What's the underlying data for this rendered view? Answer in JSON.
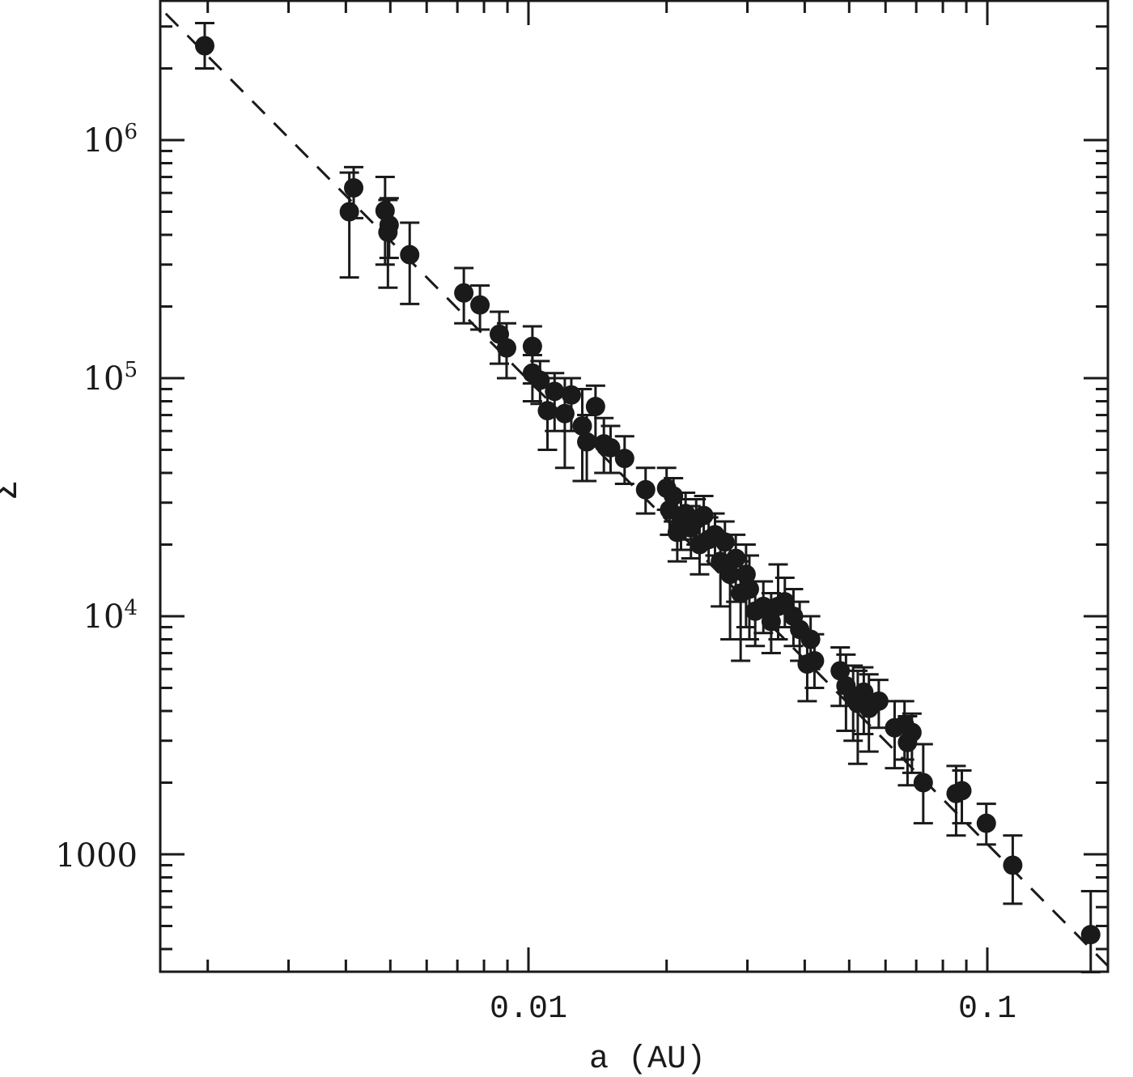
{
  "chart_data": {
    "type": "scatter",
    "title": "",
    "xlabel": "a (AU)",
    "ylabel": "Σ",
    "xscale": "log",
    "yscale": "log",
    "xlim": [
      0.00155,
      0.19
    ],
    "ylim": [
      320,
      3500000
    ],
    "grid": false,
    "legend": null,
    "x_ticks": [
      {
        "value": 0.01,
        "label": "0.01"
      },
      {
        "value": 0.1,
        "label": "0.1"
      }
    ],
    "y_ticks": [
      {
        "value": 1000,
        "label": "1000",
        "base": "1000",
        "exp": ""
      },
      {
        "value": 10000,
        "label": "10^4",
        "base": "10",
        "exp": "4"
      },
      {
        "value": 100000,
        "label": "10^5",
        "base": "10",
        "exp": "5"
      },
      {
        "value": 1000000,
        "label": "10^6",
        "base": "10",
        "exp": "6"
      }
    ],
    "marker": {
      "shape": "filled-circle",
      "color": "#1a1a1a",
      "radius_px": 12
    },
    "fit_line": {
      "style": "dashed",
      "color": "#1a1a1a",
      "from": {
        "a": 0.00162,
        "sigma": 3400000
      },
      "to": {
        "a": 0.183,
        "sigma": 340
      }
    },
    "series": [
      {
        "name": "data",
        "points": [
          {
            "a": 0.00197,
            "sigma": 2490000,
            "err_lo": 2000000,
            "err_hi": 3100000
          },
          {
            "a": 0.00407,
            "sigma": 500000,
            "err_lo": 265000,
            "err_hi": 730000
          },
          {
            "a": 0.00416,
            "sigma": 630000,
            "err_lo": 470000,
            "err_hi": 770000
          },
          {
            "a": 0.00487,
            "sigma": 505000,
            "err_lo": 300000,
            "err_hi": 700000
          },
          {
            "a": 0.00494,
            "sigma": 410000,
            "err_lo": 240000,
            "err_hi": 560000
          },
          {
            "a": 0.00497,
            "sigma": 440000,
            "err_lo": 320000,
            "err_hi": 570000
          },
          {
            "a": 0.00551,
            "sigma": 330000,
            "err_lo": 205000,
            "err_hi": 450000
          },
          {
            "a": 0.00723,
            "sigma": 228000,
            "err_lo": 170000,
            "err_hi": 290000
          },
          {
            "a": 0.00784,
            "sigma": 203000,
            "err_lo": 160000,
            "err_hi": 245000
          },
          {
            "a": 0.00864,
            "sigma": 153000,
            "err_lo": 115000,
            "err_hi": 190000
          },
          {
            "a": 0.00896,
            "sigma": 134000,
            "err_lo": 100000,
            "err_hi": 170000
          },
          {
            "a": 0.0102,
            "sigma": 136000,
            "err_lo": 95000,
            "err_hi": 165000
          },
          {
            "a": 0.0102,
            "sigma": 105000,
            "err_lo": 80000,
            "err_hi": 125000
          },
          {
            "a": 0.0106,
            "sigma": 98000,
            "err_lo": 78000,
            "err_hi": 118000
          },
          {
            "a": 0.011,
            "sigma": 73000,
            "err_lo": 50000,
            "err_hi": 100000
          },
          {
            "a": 0.0114,
            "sigma": 88000,
            "err_lo": 60000,
            "err_hi": 105000
          },
          {
            "a": 0.012,
            "sigma": 71000,
            "err_lo": 42000,
            "err_hi": 100000
          },
          {
            "a": 0.0124,
            "sigma": 85000,
            "err_lo": 60000,
            "err_hi": 100000
          },
          {
            "a": 0.0131,
            "sigma": 63000,
            "err_lo": 37000,
            "err_hi": 90000
          },
          {
            "a": 0.0134,
            "sigma": 54000,
            "err_lo": 37000,
            "err_hi": 70000
          },
          {
            "a": 0.014,
            "sigma": 76000,
            "err_lo": 55000,
            "err_hi": 93000
          },
          {
            "a": 0.0146,
            "sigma": 53000,
            "err_lo": 40000,
            "err_hi": 68000
          },
          {
            "a": 0.0151,
            "sigma": 51000,
            "err_lo": 40000,
            "err_hi": 63000
          },
          {
            "a": 0.0162,
            "sigma": 46000,
            "err_lo": 36000,
            "err_hi": 57000
          },
          {
            "a": 0.018,
            "sigma": 34000,
            "err_lo": 27000,
            "err_hi": 42000
          },
          {
            "a": 0.02,
            "sigma": 34500,
            "err_lo": 28000,
            "err_hi": 42000
          },
          {
            "a": 0.0203,
            "sigma": 28000,
            "err_lo": 22000,
            "err_hi": 34000
          },
          {
            "a": 0.0207,
            "sigma": 32000,
            "err_lo": 25000,
            "err_hi": 38000
          },
          {
            "a": 0.0211,
            "sigma": 22500,
            "err_lo": 17000,
            "err_hi": 28000
          },
          {
            "a": 0.0215,
            "sigma": 25000,
            "err_lo": 19000,
            "err_hi": 31000
          },
          {
            "a": 0.022,
            "sigma": 27000,
            "err_lo": 21000,
            "err_hi": 33000
          },
          {
            "a": 0.0226,
            "sigma": 23500,
            "err_lo": 17500,
            "err_hi": 29000
          },
          {
            "a": 0.0232,
            "sigma": 25500,
            "err_lo": 20000,
            "err_hi": 31000
          },
          {
            "a": 0.0236,
            "sigma": 20000,
            "err_lo": 15000,
            "err_hi": 26000
          },
          {
            "a": 0.0241,
            "sigma": 26500,
            "err_lo": 21000,
            "err_hi": 32000
          },
          {
            "a": 0.0247,
            "sigma": 21000,
            "err_lo": 16500,
            "err_hi": 26000
          },
          {
            "a": 0.0255,
            "sigma": 22000,
            "err_lo": 18000,
            "err_hi": 27000
          },
          {
            "a": 0.0262,
            "sigma": 17000,
            "err_lo": 11000,
            "err_hi": 22000
          },
          {
            "a": 0.0268,
            "sigma": 20500,
            "err_lo": 16000,
            "err_hi": 25000
          },
          {
            "a": 0.0275,
            "sigma": 15000,
            "err_lo": 8000,
            "err_hi": 20000
          },
          {
            "a": 0.0283,
            "sigma": 17500,
            "err_lo": 11500,
            "err_hi": 22000
          },
          {
            "a": 0.029,
            "sigma": 12500,
            "err_lo": 6500,
            "err_hi": 17000
          },
          {
            "a": 0.0298,
            "sigma": 15000,
            "err_lo": 9000,
            "err_hi": 20000
          },
          {
            "a": 0.0303,
            "sigma": 13000,
            "err_lo": 8000,
            "err_hi": 18000
          },
          {
            "a": 0.0312,
            "sigma": 10500,
            "err_lo": 7500,
            "err_hi": 14000
          },
          {
            "a": 0.0325,
            "sigma": 11000,
            "err_lo": 8500,
            "err_hi": 14000
          },
          {
            "a": 0.0338,
            "sigma": 9500,
            "err_lo": 7000,
            "err_hi": 12500
          },
          {
            "a": 0.035,
            "sigma": 11000,
            "err_lo": 8000,
            "err_hi": 16500
          },
          {
            "a": 0.0362,
            "sigma": 11500,
            "err_lo": 9000,
            "err_hi": 14500
          },
          {
            "a": 0.0378,
            "sigma": 10000,
            "err_lo": 7500,
            "err_hi": 13000
          },
          {
            "a": 0.039,
            "sigma": 8800,
            "err_lo": 6500,
            "err_hi": 11500
          },
          {
            "a": 0.0405,
            "sigma": 6300,
            "err_lo": 4400,
            "err_hi": 8500
          },
          {
            "a": 0.0412,
            "sigma": 8000,
            "err_lo": 6000,
            "err_hi": 10000
          },
          {
            "a": 0.042,
            "sigma": 6500,
            "err_lo": 5000,
            "err_hi": 8400
          },
          {
            "a": 0.0478,
            "sigma": 5900,
            "err_lo": 4200,
            "err_hi": 7400
          },
          {
            "a": 0.0492,
            "sigma": 5100,
            "err_lo": 3300,
            "err_hi": 6900
          },
          {
            "a": 0.051,
            "sigma": 4600,
            "err_lo": 3000,
            "err_hi": 6200
          },
          {
            "a": 0.0522,
            "sigma": 4300,
            "err_lo": 2400,
            "err_hi": 5900
          },
          {
            "a": 0.0538,
            "sigma": 4800,
            "err_lo": 3200,
            "err_hi": 6100
          },
          {
            "a": 0.0552,
            "sigma": 4100,
            "err_lo": 2700,
            "err_hi": 5700
          },
          {
            "a": 0.058,
            "sigma": 4400,
            "err_lo": 3400,
            "err_hi": 5400
          },
          {
            "a": 0.0628,
            "sigma": 3400,
            "err_lo": 2300,
            "err_hi": 4400
          },
          {
            "a": 0.066,
            "sigma": 3500,
            "err_lo": 2500,
            "err_hi": 4400
          },
          {
            "a": 0.067,
            "sigma": 2950,
            "err_lo": 1950,
            "err_hi": 3800
          },
          {
            "a": 0.0685,
            "sigma": 3250,
            "err_lo": 2200,
            "err_hi": 3900
          },
          {
            "a": 0.0725,
            "sigma": 2000,
            "err_lo": 1350,
            "err_hi": 2900
          },
          {
            "a": 0.0855,
            "sigma": 1800,
            "err_lo": 1200,
            "err_hi": 2350
          },
          {
            "a": 0.088,
            "sigma": 1850,
            "err_lo": 1350,
            "err_hi": 2250
          },
          {
            "a": 0.0995,
            "sigma": 1350,
            "err_lo": 1100,
            "err_hi": 1630
          },
          {
            "a": 0.1136,
            "sigma": 900,
            "err_lo": 620,
            "err_hi": 1200
          },
          {
            "a": 0.168,
            "sigma": 460,
            "err_lo": 320,
            "err_hi": 700
          }
        ]
      }
    ]
  },
  "axes": {
    "x_title": "a (AU)",
    "y_title": "Σ",
    "x_tick_labels": [
      "0.01",
      "0.1"
    ],
    "y_tick_labels": {
      "t1000": "1000",
      "t1e4_base": "10",
      "t1e4_exp": "4",
      "t1e5_base": "10",
      "t1e5_exp": "5",
      "t1e6_base": "10",
      "t1e6_exp": "6"
    }
  },
  "colors": {
    "ink": "#1a1a1a",
    "background": "#ffffff"
  }
}
